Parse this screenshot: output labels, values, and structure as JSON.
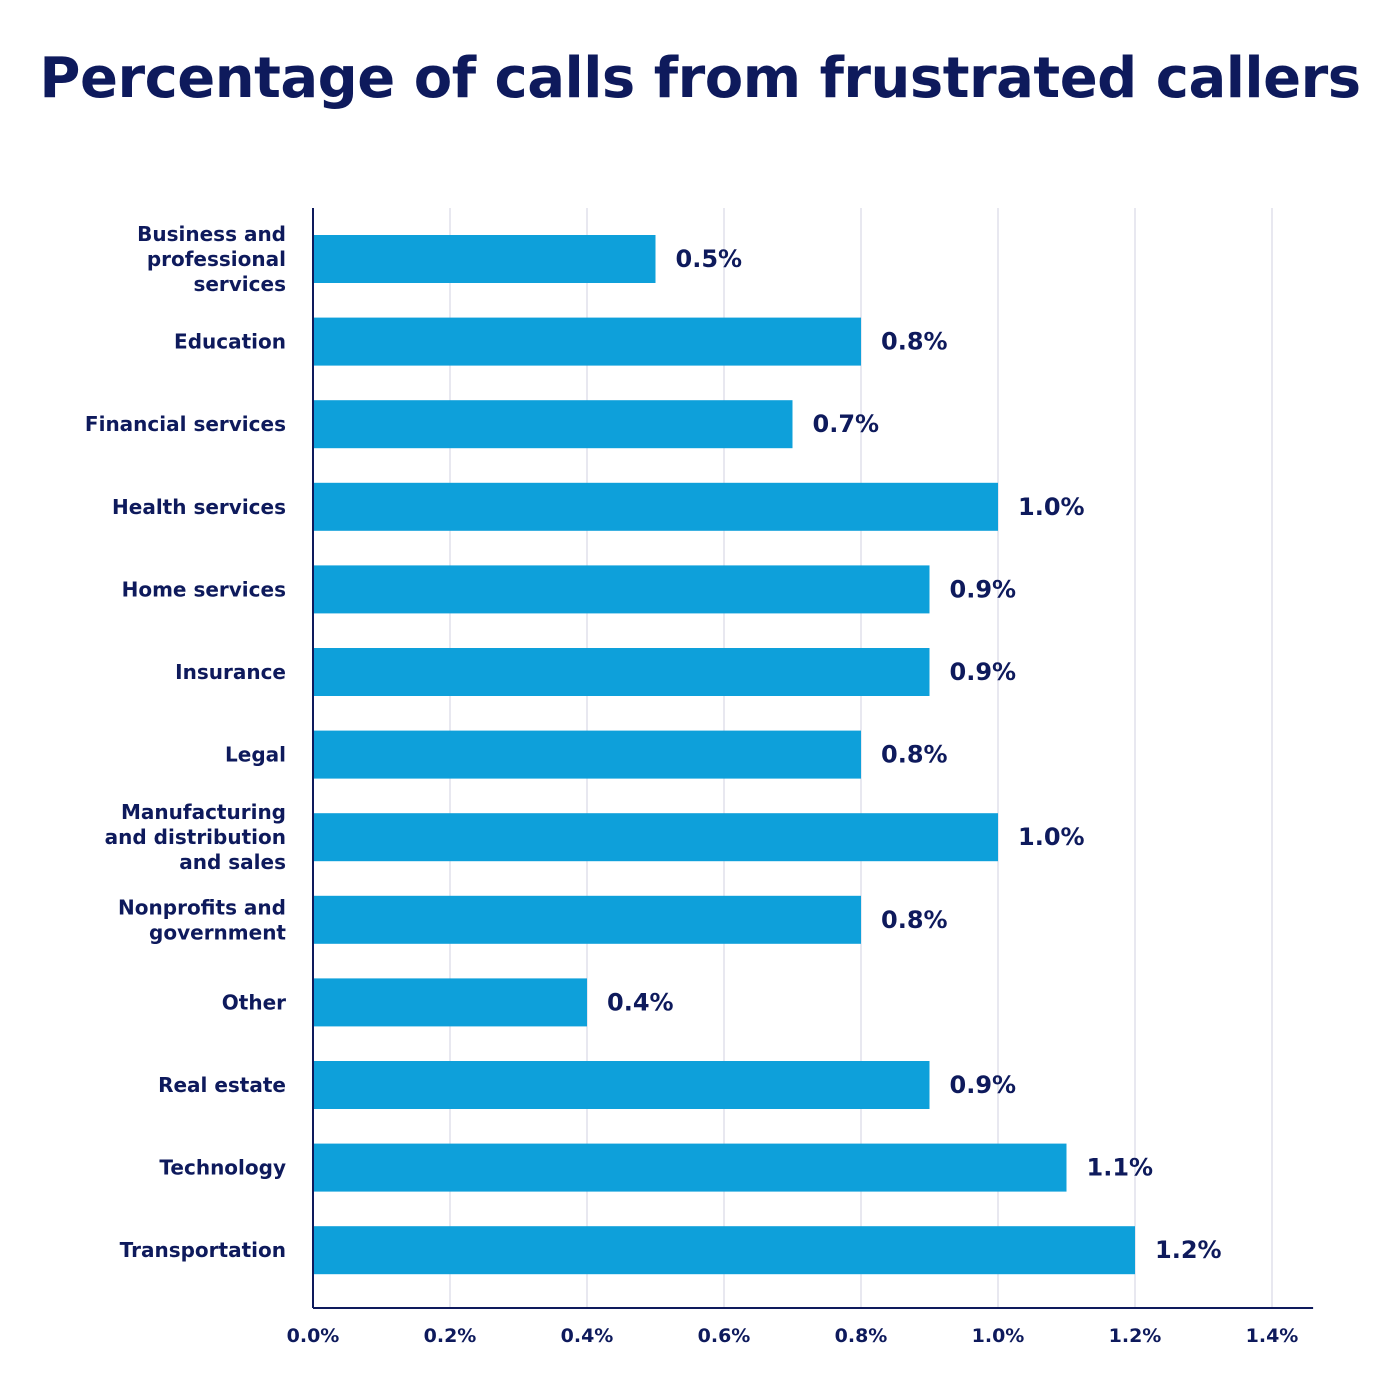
{
  "chart_data": {
    "type": "bar",
    "orientation": "horizontal",
    "title": "Percentage of calls from frustrated callers",
    "xlabel": "",
    "ylabel": "",
    "categories": [
      [
        "Business and",
        "professional",
        "services"
      ],
      [
        "Education"
      ],
      [
        "Financial services"
      ],
      [
        "Health services"
      ],
      [
        "Home services"
      ],
      [
        "Insurance"
      ],
      [
        "Legal"
      ],
      [
        "Manufacturing",
        "and distribution",
        "and sales"
      ],
      [
        "Nonprofits and",
        "government"
      ],
      [
        "Other"
      ],
      [
        "Real estate"
      ],
      [
        "Technology"
      ],
      [
        "Transportation"
      ]
    ],
    "values": [
      0.5,
      0.8,
      0.7,
      1.0,
      0.9,
      0.9,
      0.8,
      1.0,
      0.8,
      0.4,
      0.9,
      1.1,
      1.2
    ],
    "data_labels": [
      "0.5%",
      "0.8%",
      "0.7%",
      "1.0%",
      "0.9%",
      "0.9%",
      "0.8%",
      "1.0%",
      "0.8%",
      "0.4%",
      "0.9%",
      "1.1%",
      "1.2%"
    ],
    "xlim": [
      0,
      1.46
    ],
    "xticks": [
      0.0,
      0.2,
      0.4,
      0.6,
      0.8,
      1.0,
      1.2,
      1.4
    ],
    "xtick_labels": [
      "0.0%",
      "0.2%",
      "0.4%",
      "0.6%",
      "0.8%",
      "1.0%",
      "1.2%",
      "1.4%"
    ],
    "grid": true,
    "legend": "none",
    "colors": {
      "bar": "#0ea0da",
      "text": "#0e1a5c",
      "axis": "#0e1a5c",
      "grid": "#e8e8f0"
    }
  }
}
